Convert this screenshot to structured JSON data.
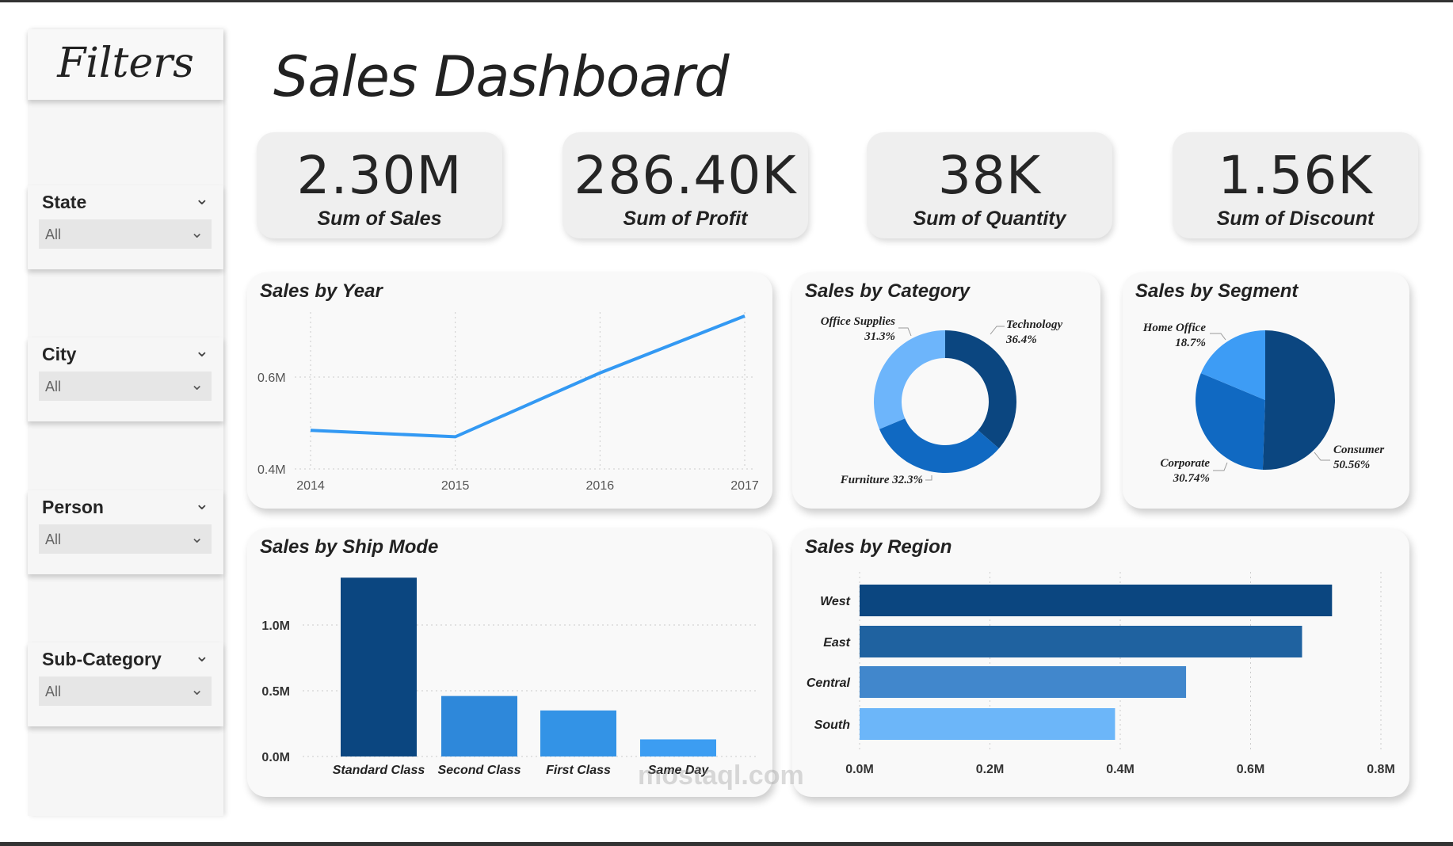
{
  "sidebar": {
    "header": "Filters",
    "slicers": [
      {
        "label": "State",
        "value": "All"
      },
      {
        "label": "City",
        "value": "All"
      },
      {
        "label": "Person",
        "value": "All"
      },
      {
        "label": "Sub-Category",
        "value": "All"
      }
    ]
  },
  "header": {
    "title": "Sales Dashboard"
  },
  "kpis": [
    {
      "value": "2.30M",
      "label": "Sum of Sales"
    },
    {
      "value": "286.40K",
      "label": "Sum of Profit"
    },
    {
      "value": "38K",
      "label": "Sum of Quantity"
    },
    {
      "value": "1.56K",
      "label": "Sum of Discount"
    }
  ],
  "watermark": "mostaql.com",
  "chart_data": [
    {
      "type": "line",
      "title": "Sales by Year",
      "x": [
        "2014",
        "2015",
        "2016",
        "2017"
      ],
      "values": [
        0.484,
        0.47,
        0.609,
        0.733
      ],
      "unit": "M",
      "yticks": [
        "0.4M",
        "0.6M"
      ],
      "ylim": [
        0.4,
        0.75
      ],
      "grid": true,
      "color": "#3399f3"
    },
    {
      "type": "pie",
      "subtype": "donut",
      "title": "Sales by Category",
      "slices": [
        {
          "label": "Technology",
          "pct": "36.4%",
          "value": 36.4,
          "color": "#0b4680"
        },
        {
          "label": "Furniture",
          "pct": "32.3%",
          "value": 32.3,
          "color": "#1069c2"
        },
        {
          "label": "Office Supplies",
          "pct": "31.3%",
          "value": 31.3,
          "color": "#6db5fb"
        }
      ]
    },
    {
      "type": "pie",
      "title": "Sales by Segment",
      "slices": [
        {
          "label": "Consumer",
          "pct": "50.56%",
          "value": 50.56,
          "color": "#0b4680"
        },
        {
          "label": "Corporate",
          "pct": "30.74%",
          "value": 30.74,
          "color": "#1069c2"
        },
        {
          "label": "Home Office",
          "pct": "18.7%",
          "value": 18.7,
          "color": "#3d9cf5"
        }
      ]
    },
    {
      "type": "bar",
      "title": "Sales by Ship Mode",
      "categories": [
        "Standard Class",
        "Second Class",
        "First Class",
        "Same Day"
      ],
      "values": [
        1.36,
        0.46,
        0.35,
        0.13
      ],
      "yticks": [
        "0.0M",
        "0.5M",
        "1.0M"
      ],
      "ylim": [
        0,
        1.4
      ],
      "colors": [
        "#0b4680",
        "#2e88da",
        "#3393e6",
        "#3c9df2"
      ]
    },
    {
      "type": "bar",
      "orientation": "horizontal",
      "title": "Sales by Region",
      "categories": [
        "West",
        "East",
        "Central",
        "South"
      ],
      "values": [
        0.725,
        0.679,
        0.501,
        0.392
      ],
      "xticks": [
        "0.0M",
        "0.2M",
        "0.4M",
        "0.6M",
        "0.8M"
      ],
      "xlim": [
        0,
        0.8
      ],
      "colors": [
        "#0b4680",
        "#1f62a0",
        "#4187cc",
        "#6cb6f9"
      ]
    }
  ]
}
